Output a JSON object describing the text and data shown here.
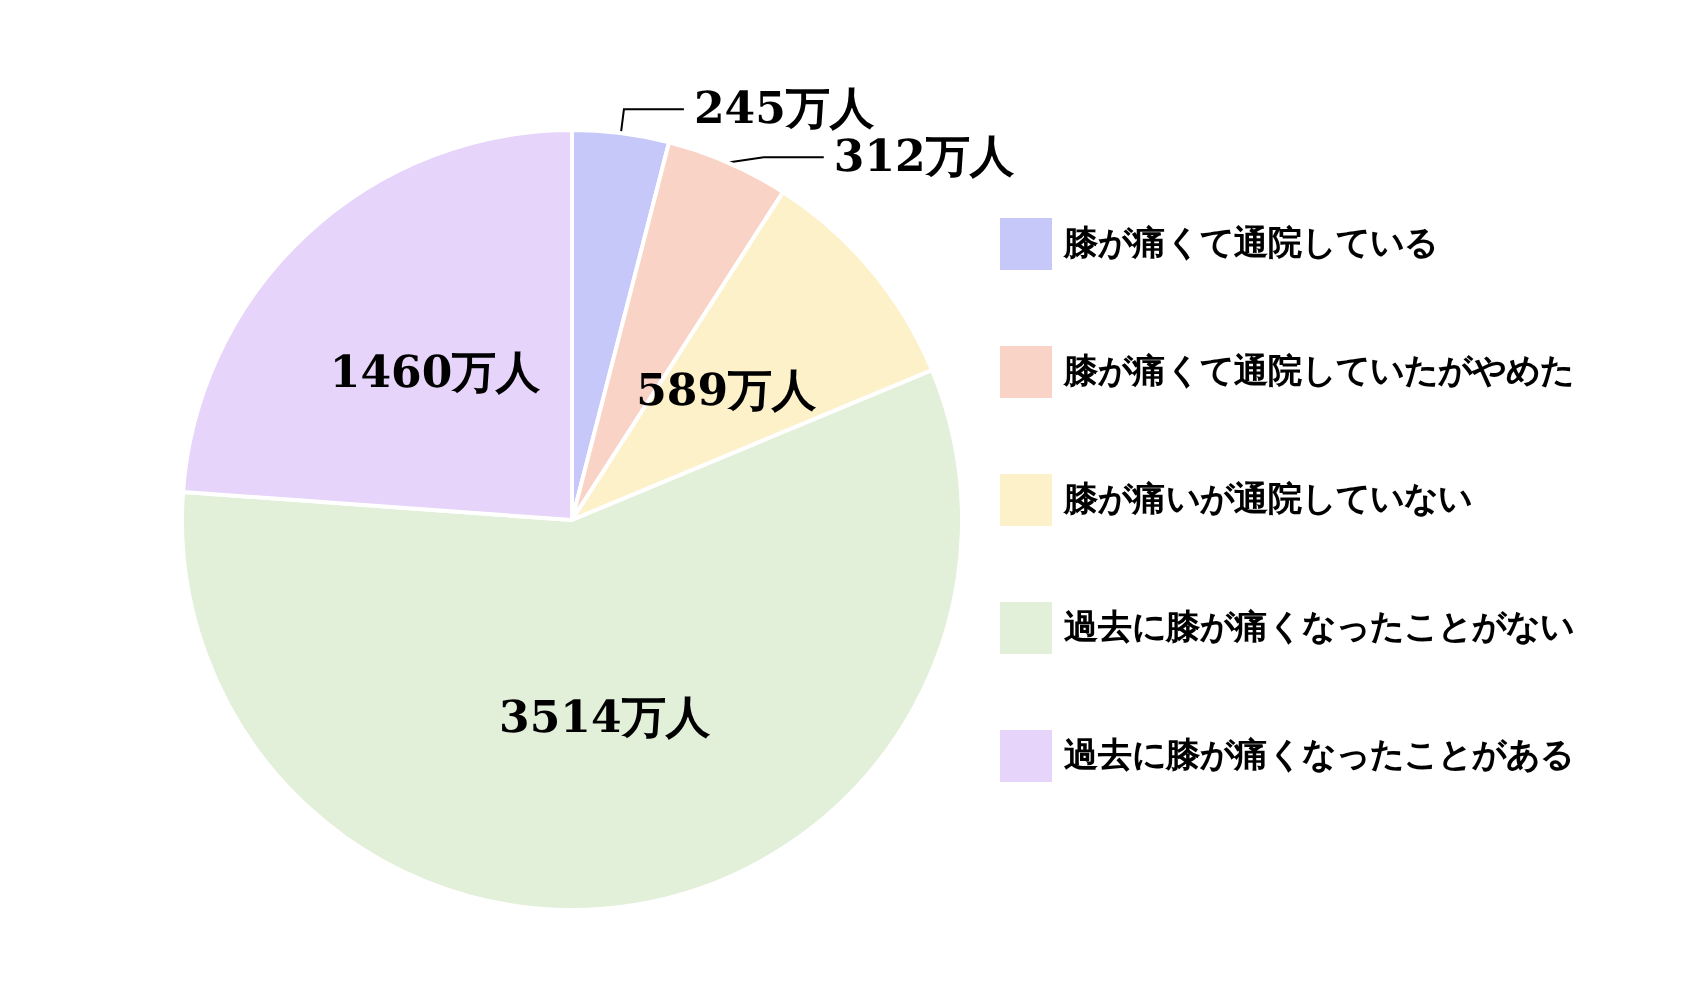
{
  "chart_data": {
    "type": "pie",
    "categories": [
      "膝が痛くて通院している",
      "膝が痛くて通院していたがやめた",
      "膝が痛いが通院していない",
      "過去に膝が痛くなったことがない",
      "過去に膝が痛くなったことがある"
    ],
    "values": [
      245,
      312,
      589,
      3514,
      1460
    ],
    "value_labels": [
      "245万人",
      "312万人",
      "589万人",
      "3514万人",
      "1460万人"
    ],
    "colors": [
      "#c5c8f8",
      "#f9d3c5",
      "#fdf1c9",
      "#e2efd9",
      "#e6d4fa"
    ],
    "legend": "right"
  }
}
